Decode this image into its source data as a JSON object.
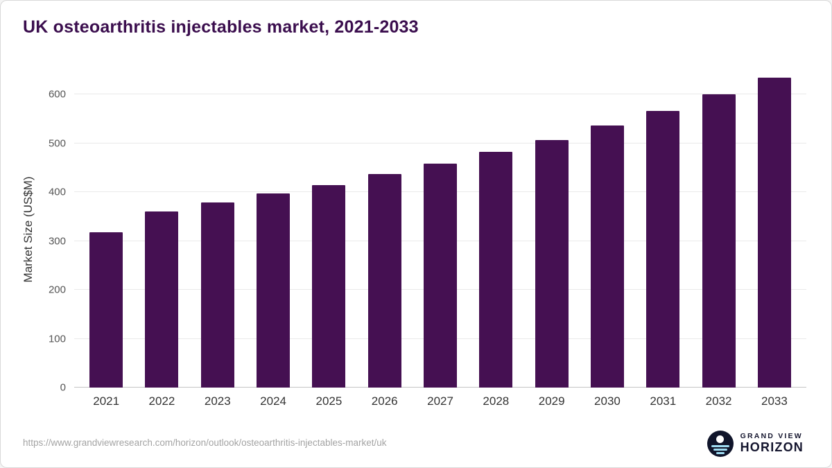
{
  "header": {
    "title": "UK osteoarthritis injectables market, 2021-2033"
  },
  "chart_data": {
    "type": "bar",
    "title": "UK osteoarthritis injectables market, 2021-2033",
    "categories": [
      "2021",
      "2022",
      "2023",
      "2024",
      "2025",
      "2026",
      "2027",
      "2028",
      "2029",
      "2030",
      "2031",
      "2032",
      "2033"
    ],
    "values": [
      318,
      360,
      379,
      397,
      415,
      437,
      458,
      482,
      507,
      536,
      566,
      600,
      635
    ],
    "xlabel": "",
    "ylabel": "Market Size (US$M)",
    "ylim": [
      0,
      650
    ],
    "yticks": [
      0,
      100,
      200,
      300,
      400,
      500,
      600
    ],
    "grid": true,
    "legend": false,
    "bar_color": "#451052",
    "title_color": "#3b0e4e"
  },
  "footer": {
    "source_url": "https://www.grandviewresearch.com/horizon/outlook/osteoarthritis-injectables-market/uk",
    "logo": {
      "line1": "GRAND VIEW",
      "line2": "HORIZON"
    }
  }
}
